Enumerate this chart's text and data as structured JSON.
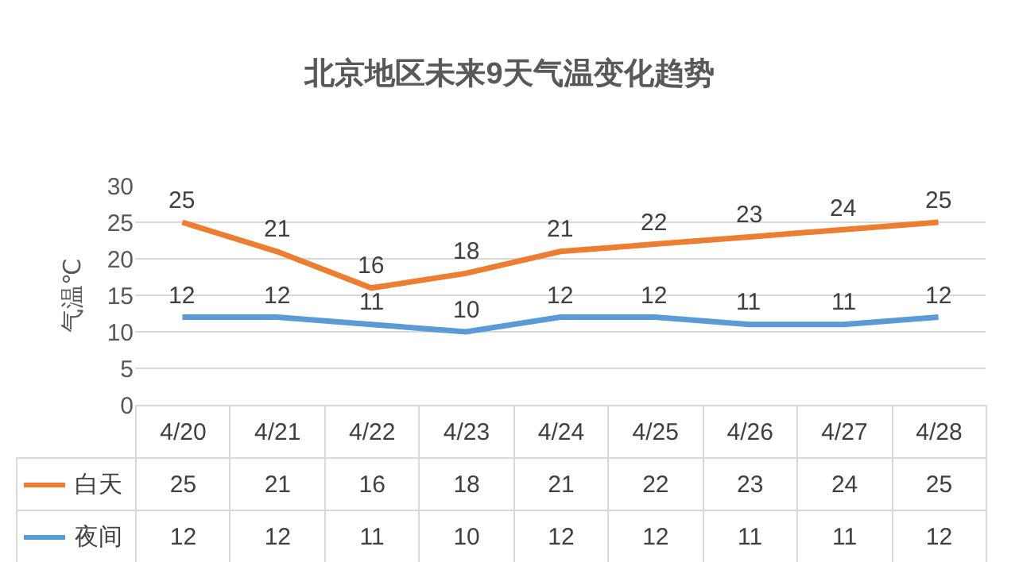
{
  "chart_data": {
    "type": "line",
    "title": "北京地区未来9天气温变化趋势",
    "ylabel": "气温℃",
    "categories": [
      "4/20",
      "4/21",
      "4/22",
      "4/23",
      "4/24",
      "4/25",
      "4/26",
      "4/27",
      "4/28"
    ],
    "series": [
      {
        "name": "白天",
        "color": "#ed7d31",
        "values": [
          25,
          21,
          16,
          18,
          21,
          22,
          23,
          24,
          25
        ]
      },
      {
        "name": "夜间",
        "color": "#5b9bd5",
        "values": [
          12,
          12,
          11,
          10,
          12,
          12,
          11,
          11,
          12
        ]
      }
    ],
    "annotations": [
      {
        "text": "25",
        "x": "4/20",
        "y": 25
      },
      {
        "text": "21",
        "x": "4/21",
        "y": 21
      },
      {
        "text": "16",
        "x": "4/22",
        "y": 16
      },
      {
        "text": "18",
        "x": "4/23",
        "y": 18
      },
      {
        "text": "21",
        "x": "4/24",
        "y": 21
      },
      {
        "text": "22",
        "x": "4/25",
        "y": 22
      },
      {
        "text": "23",
        "x": "4/26",
        "y": 23
      },
      {
        "text": "24",
        "x": "4/27",
        "y": 24
      },
      {
        "text": "25",
        "x": "4/28",
        "y": 25
      },
      {
        "text": "12",
        "x": "4/20",
        "y": 12
      },
      {
        "text": "12",
        "x": "4/21",
        "y": 12
      },
      {
        "text": "11",
        "x": "4/22",
        "y": 11
      },
      {
        "text": "10",
        "x": "4/23",
        "y": 10
      },
      {
        "text": "12",
        "x": "4/24",
        "y": 12
      },
      {
        "text": "12",
        "x": "4/25",
        "y": 12
      },
      {
        "text": "11",
        "x": "4/26",
        "y": 11
      },
      {
        "text": "11",
        "x": "4/27",
        "y": 11
      },
      {
        "text": "12",
        "x": "4/28",
        "y": 12
      }
    ],
    "ylim": [
      0,
      30
    ],
    "yticks": [
      0,
      5,
      10,
      15,
      20,
      25,
      30
    ],
    "grid": "y",
    "marker": "none",
    "line_style": "solid",
    "data_labels": true,
    "legend": "bottom left"
  }
}
